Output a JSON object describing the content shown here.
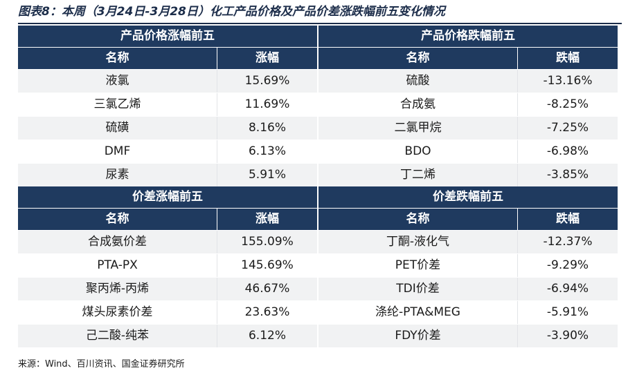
{
  "figure_title": "图表8：本周（3月24日-3月28日）化工产品价格及产品价差涨跌幅前五变化情况",
  "sections": {
    "price_up": {
      "title": "产品价格涨幅前五",
      "col_name": "名称",
      "col_value": "涨幅",
      "rows": [
        {
          "name": "液氯",
          "value": "15.69%"
        },
        {
          "name": "三氯乙烯",
          "value": "11.69%"
        },
        {
          "name": "硫磺",
          "value": "8.16%"
        },
        {
          "name": "DMF",
          "value": "6.13%"
        },
        {
          "name": "尿素",
          "value": "5.91%"
        }
      ]
    },
    "price_down": {
      "title": "产品价格跌幅前五",
      "col_name": "名称",
      "col_value": "跌幅",
      "rows": [
        {
          "name": "硫酸",
          "value": "-13.16%"
        },
        {
          "name": "合成氨",
          "value": "-8.25%"
        },
        {
          "name": "二氯甲烷",
          "value": "-7.25%"
        },
        {
          "name": "BDO",
          "value": "-6.98%"
        },
        {
          "name": "丁二烯",
          "value": "-3.85%"
        }
      ]
    },
    "spread_up": {
      "title": "价差涨幅前五",
      "col_name": "名称",
      "col_value": "涨幅",
      "rows": [
        {
          "name": "合成氨价差",
          "value": "155.09%"
        },
        {
          "name": "PTA-PX",
          "value": "145.69%"
        },
        {
          "name": "聚丙烯-丙烯",
          "value": "46.67%"
        },
        {
          "name": "煤头尿素价差",
          "value": "23.63%"
        },
        {
          "name": "己二酸-纯苯",
          "value": "6.12%"
        }
      ]
    },
    "spread_down": {
      "title": "价差跌幅前五",
      "col_name": "名称",
      "col_value": "跌幅",
      "rows": [
        {
          "name": "丁酮-液化气",
          "value": "-12.37%"
        },
        {
          "name": "PET价差",
          "value": "-9.29%"
        },
        {
          "name": "TDI价差",
          "value": "-6.94%"
        },
        {
          "name": "涤纶-PTA&MEG",
          "value": "-5.91%"
        },
        {
          "name": "FDY价差",
          "value": "-3.90%"
        }
      ]
    }
  },
  "source": "来源：Wind、百川资讯、国金证券研究所",
  "colors": {
    "header_bg": "#1f3a5f",
    "stripe_bg": "#f1f2f3",
    "title_color": "#1c2d4a"
  }
}
